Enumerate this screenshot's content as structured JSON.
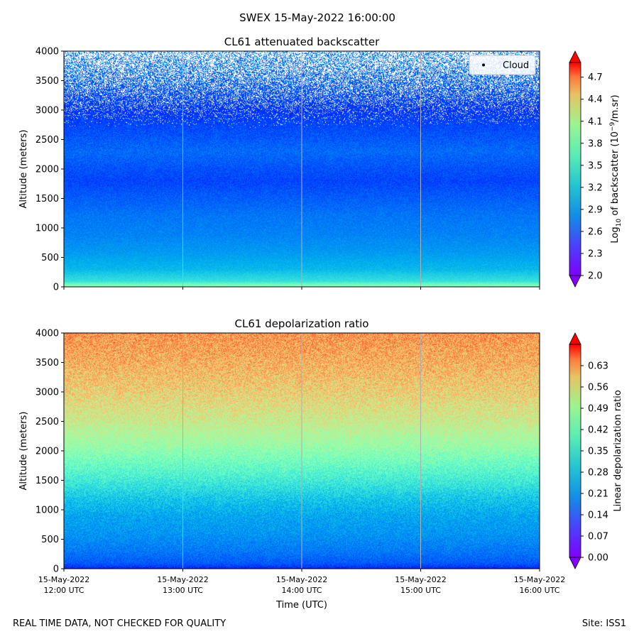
{
  "figure": {
    "suptitle": "SWEX 15-May-2022 16:00:00",
    "footer_left": "REAL TIME DATA, NOT CHECKED FOR QUALITY",
    "footer_right": "Site: ISS1"
  },
  "chart_data": [
    {
      "type": "heatmap",
      "title": "CL61 attenuated backscatter",
      "ylabel": "Altitude (meters)",
      "xlabel": "",
      "ylim": [
        0,
        4000
      ],
      "yticks": [
        0,
        500,
        1000,
        1500,
        2000,
        2500,
        3000,
        3500,
        4000
      ],
      "xticks": [
        {
          "line1": "15-May-2022",
          "line2": "12:00 UTC"
        },
        {
          "line1": "15-May-2022",
          "line2": "13:00 UTC"
        },
        {
          "line1": "15-May-2022",
          "line2": "14:00 UTC"
        },
        {
          "line1": "15-May-2022",
          "line2": "15:00 UTC"
        },
        {
          "line1": "15-May-2022",
          "line2": "16:00 UTC"
        }
      ],
      "show_xtick_labels": false,
      "grid": "vertical lines at hourly ticks",
      "colormap": "rainbow",
      "colorbar": {
        "label_prefix": "Log",
        "label_sub": "10",
        "label_mid": " of backscatter (10",
        "label_sup": "−9",
        "label_suffix": "/m.sr)",
        "min": 2.0,
        "max": 4.9,
        "ticks": [
          "2.0",
          "2.3",
          "2.6",
          "2.9",
          "3.2",
          "3.5",
          "3.8",
          "4.1",
          "4.4",
          "4.7"
        ],
        "extend": "both"
      },
      "legend": {
        "label": "Cloud",
        "placement": "upper-right"
      },
      "profile": {
        "altitude_m": [
          0,
          100,
          300,
          600,
          900,
          1200,
          1500,
          1800,
          2000,
          2300,
          2600,
          3000,
          3500,
          4000
        ],
        "log_backscatter": [
          3.6,
          3.0,
          2.75,
          2.6,
          2.5,
          2.45,
          2.35,
          2.25,
          2.3,
          2.4,
          2.3,
          2.2,
          2.35,
          2.45
        ]
      }
    },
    {
      "type": "heatmap",
      "title": "CL61 depolarization ratio",
      "ylabel": "Altitude (meters)",
      "xlabel": "Time (UTC)",
      "ylim": [
        0,
        4000
      ],
      "yticks": [
        0,
        500,
        1000,
        1500,
        2000,
        2500,
        3000,
        3500,
        4000
      ],
      "xticks": [
        {
          "line1": "15-May-2022",
          "line2": "12:00 UTC"
        },
        {
          "line1": "15-May-2022",
          "line2": "13:00 UTC"
        },
        {
          "line1": "15-May-2022",
          "line2": "14:00 UTC"
        },
        {
          "line1": "15-May-2022",
          "line2": "15:00 UTC"
        },
        {
          "line1": "15-May-2022",
          "line2": "16:00 UTC"
        }
      ],
      "show_xtick_labels": true,
      "grid": "vertical lines at hourly ticks",
      "colormap": "rainbow",
      "colorbar": {
        "label": "Linear depolarization ratio",
        "min": 0.0,
        "max": 0.7,
        "ticks": [
          "0.00",
          "0.07",
          "0.14",
          "0.21",
          "0.28",
          "0.35",
          "0.42",
          "0.49",
          "0.56",
          "0.63"
        ],
        "extend": "both"
      },
      "profile": {
        "altitude_m": [
          0,
          100,
          300,
          600,
          900,
          1200,
          1500,
          1800,
          2100,
          2500,
          3000,
          3500,
          4000
        ],
        "depolarization": [
          0.03,
          0.08,
          0.11,
          0.14,
          0.16,
          0.2,
          0.26,
          0.32,
          0.38,
          0.44,
          0.49,
          0.53,
          0.56
        ]
      }
    }
  ]
}
